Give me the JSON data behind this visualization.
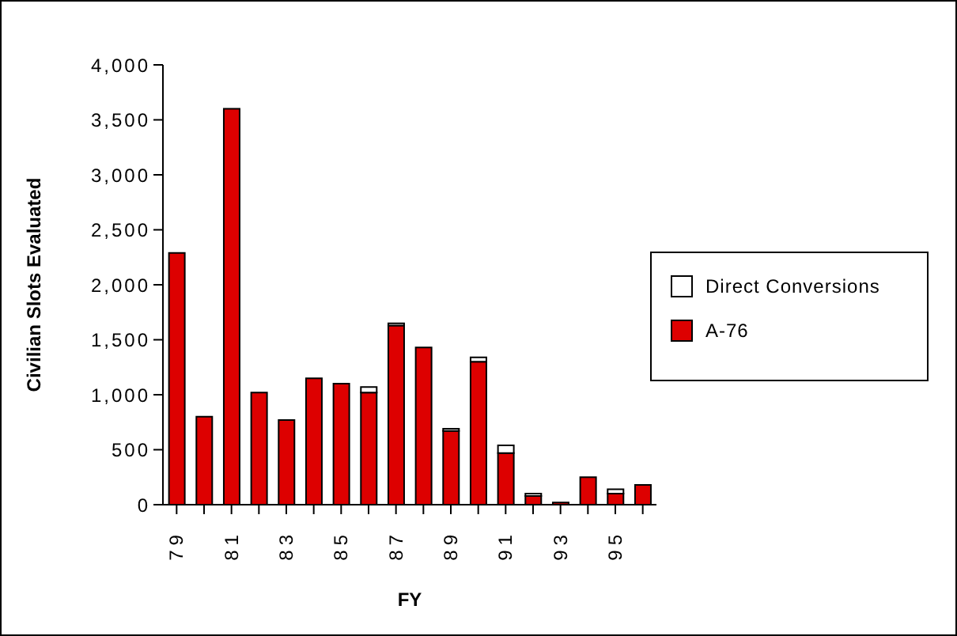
{
  "chart_data": {
    "type": "bar",
    "stacked": true,
    "xlabel": "FY",
    "ylabel": "Civilian  Slots  Evaluated",
    "categories": [
      "79",
      null,
      "81",
      null,
      "83",
      null,
      "85",
      null,
      "87",
      null,
      "89",
      null,
      "91",
      null,
      "93",
      null,
      "95",
      null
    ],
    "series": [
      {
        "name": "A-76",
        "color": "#dd0000",
        "values": [
          2290,
          800,
          3600,
          1020,
          770,
          1150,
          1100,
          1020,
          1630,
          1430,
          670,
          1300,
          470,
          80,
          20,
          250,
          100,
          180
        ]
      },
      {
        "name": "Direct Conversions",
        "color": "#ffffff",
        "values": [
          0,
          0,
          0,
          0,
          0,
          0,
          0,
          50,
          20,
          0,
          20,
          40,
          70,
          20,
          0,
          0,
          40,
          0
        ]
      }
    ],
    "ylim": [
      0,
      4000
    ],
    "yticks": [
      0,
      500,
      {
        "value": 1000,
        "label": "1,000"
      },
      {
        "value": 1500,
        "label": "1,500"
      },
      {
        "value": 2000,
        "label": "2,000"
      },
      {
        "value": 2500,
        "label": "2,500"
      },
      {
        "value": 3000,
        "label": "3,000"
      },
      {
        "value": 3500,
        "label": "3,500"
      },
      {
        "value": 4000,
        "label": "4,000"
      }
    ],
    "legend": "right"
  }
}
